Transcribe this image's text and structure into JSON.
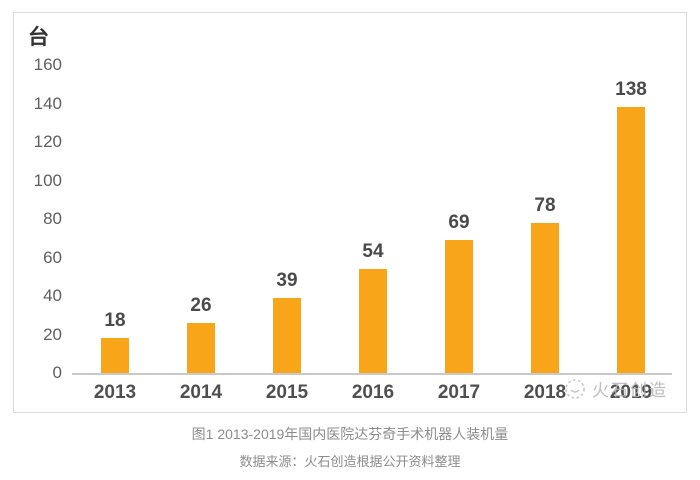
{
  "unit_label": "台",
  "chart_data": {
    "type": "bar",
    "title": "图1 2013-2019年国内医院达芬奇手术机器人装机量",
    "categories": [
      "2013",
      "2014",
      "2015",
      "2016",
      "2017",
      "2018",
      "2019"
    ],
    "values": [
      18,
      26,
      39,
      54,
      69,
      78,
      138
    ],
    "xlabel": "",
    "ylabel": "台",
    "ylim": [
      0,
      160
    ],
    "yticks": [
      0,
      20,
      40,
      60,
      80,
      100,
      120,
      140,
      160
    ],
    "grid": false,
    "legend": "none",
    "bar_color": "#F8A51A"
  },
  "caption": {
    "title": "图1 2013-2019年国内医院达芬奇手术机器人装机量",
    "source": "数据来源：火石创造根据公开资料整理"
  },
  "watermark": {
    "text": "火石创造"
  },
  "colors": {
    "bar": "#F8A51A",
    "axis_line": "#c9c9c9",
    "tick_text": "#5f5f5f",
    "label_text": "#4a4a4a",
    "caption_text": "#8d8d8d",
    "watermark_text": "#b3b3b3",
    "panel_border": "#dcdcdc"
  }
}
